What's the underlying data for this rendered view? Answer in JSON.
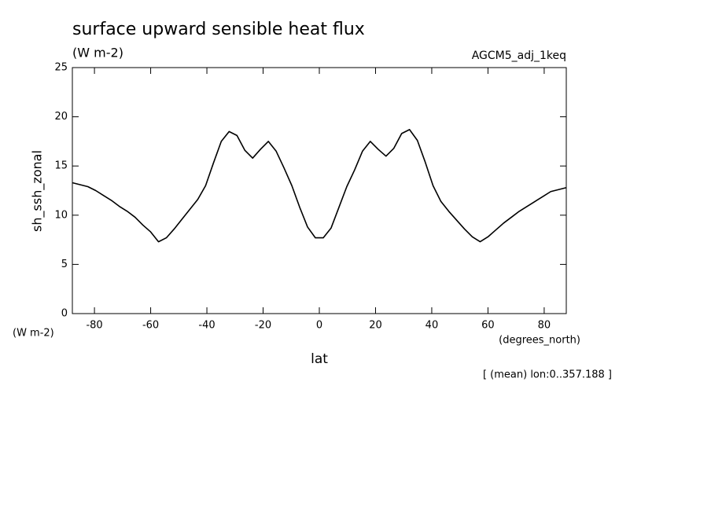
{
  "chart_data": {
    "type": "line",
    "title": "surface upward sensible heat flux",
    "subtitle": "(W m-2)",
    "dataset": "AGCM5_adj_1keq",
    "y_label": "sh_ssh_zonal",
    "y_units": "(W m-2)",
    "x_label": "lat",
    "x_units": "(degrees_north)",
    "footnote": "[ (mean) lon:0..357.188 ]",
    "x": [
      -87.86,
      -85.1,
      -82.33,
      -79.53,
      -76.74,
      -73.95,
      -71.16,
      -68.37,
      -65.58,
      -62.79,
      -60.0,
      -57.21,
      -54.42,
      -51.63,
      -48.83,
      -46.04,
      -43.25,
      -40.46,
      -37.67,
      -34.88,
      -32.09,
      -29.3,
      -26.51,
      -23.72,
      -20.93,
      -18.14,
      -15.35,
      -12.56,
      -9.77,
      -6.98,
      -4.19,
      -1.4,
      1.4,
      4.19,
      6.98,
      9.77,
      12.56,
      15.35,
      18.14,
      20.93,
      23.72,
      26.51,
      29.3,
      32.09,
      34.88,
      37.67,
      40.46,
      43.25,
      46.04,
      48.83,
      51.63,
      54.42,
      57.21,
      60.0,
      62.79,
      65.58,
      68.37,
      71.16,
      73.95,
      76.74,
      79.53,
      82.33,
      85.1,
      87.86
    ],
    "series": [
      {
        "color": "#000000",
        "values": [
          13.3,
          13.1,
          12.9,
          12.5,
          12.0,
          11.5,
          10.9,
          10.4,
          9.8,
          9.0,
          8.3,
          7.3,
          7.7,
          8.6,
          9.6,
          10.6,
          11.6,
          13.0,
          15.3,
          17.5,
          18.5,
          18.1,
          16.6,
          15.8,
          16.7,
          17.5,
          16.5,
          14.8,
          13.0,
          10.8,
          8.8,
          7.7,
          7.7,
          8.7,
          10.8,
          12.9,
          14.6,
          16.5,
          17.5,
          16.7,
          16.0,
          16.8,
          18.3,
          18.7,
          17.6,
          15.4,
          13.0,
          11.4,
          10.4,
          9.5,
          8.6,
          7.8,
          7.3,
          7.8,
          8.5,
          9.2,
          9.8,
          10.4,
          10.9,
          11.4,
          11.9,
          12.4,
          12.6,
          12.8
        ]
      }
    ],
    "xlim": [
      -87.86,
      87.86
    ],
    "xticks": [
      -80,
      -60,
      -40,
      -20,
      0,
      20,
      40,
      60,
      80
    ],
    "ylim": [
      0,
      25
    ],
    "yticks": [
      0,
      5,
      10,
      15,
      20,
      25
    ],
    "grid": false
  }
}
